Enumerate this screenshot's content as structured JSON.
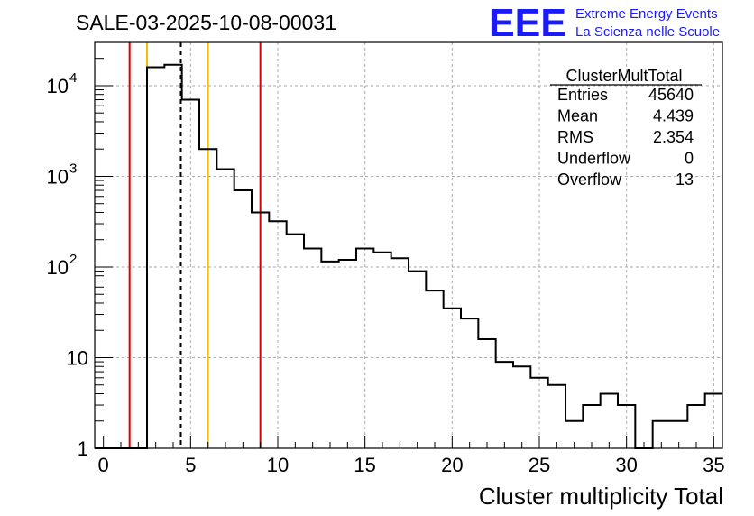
{
  "title": "SALE-03-2025-10-08-00031",
  "logo": {
    "letters": "EEE",
    "line1": "Extreme Energy Events",
    "line2": "La Scienza nelle Scuole",
    "color": "#1a1aff"
  },
  "stats": {
    "name": "ClusterMultTotal",
    "rows": [
      {
        "label": "Entries",
        "value": "45640"
      },
      {
        "label": "Mean",
        "value": "4.439"
      },
      {
        "label": "RMS",
        "value": "2.354"
      },
      {
        "label": "Underflow",
        "value": "0"
      },
      {
        "label": "Overflow",
        "value": "13"
      }
    ]
  },
  "chart_data": {
    "type": "histogram",
    "title": "SALE-03-2025-10-08-00031",
    "xlabel": "Cluster multiplicity Total",
    "ylabel": "",
    "xlim": [
      -0.5,
      35.5
    ],
    "ylim": [
      1,
      30000
    ],
    "yscale": "log",
    "grid": true,
    "bin_edges_start": -0.5,
    "bin_width": 1,
    "counts": [
      0,
      0,
      0,
      16000,
      17000,
      7000,
      2000,
      1200,
      700,
      400,
      320,
      230,
      160,
      115,
      120,
      160,
      145,
      125,
      90,
      55,
      35,
      27,
      16,
      9,
      8,
      6,
      5,
      2,
      3,
      4,
      3,
      0,
      2,
      2,
      3,
      4
    ],
    "x_ticks": [
      "0",
      "5",
      "10",
      "15",
      "20",
      "25",
      "30",
      "35"
    ],
    "x_tick_values": [
      0,
      5,
      10,
      15,
      20,
      25,
      30,
      35
    ],
    "y_ticks": [
      {
        "value": 1,
        "label": "1",
        "sup": ""
      },
      {
        "value": 10,
        "label": "10",
        "sup": ""
      },
      {
        "value": 100,
        "label": "10",
        "sup": "2"
      },
      {
        "value": 1000,
        "label": "10",
        "sup": "3"
      },
      {
        "value": 10000,
        "label": "10",
        "sup": "4"
      }
    ],
    "vertical_lines": [
      {
        "x": 1.5,
        "color": "#dd0000",
        "style": "solid"
      },
      {
        "x": 2.5,
        "color": "#f0c000",
        "style": "solid"
      },
      {
        "x": 4.439,
        "color": "#000000",
        "style": "dashed"
      },
      {
        "x": 6,
        "color": "#f0c000",
        "style": "solid"
      },
      {
        "x": 9,
        "color": "#dd0000",
        "style": "solid"
      }
    ]
  }
}
